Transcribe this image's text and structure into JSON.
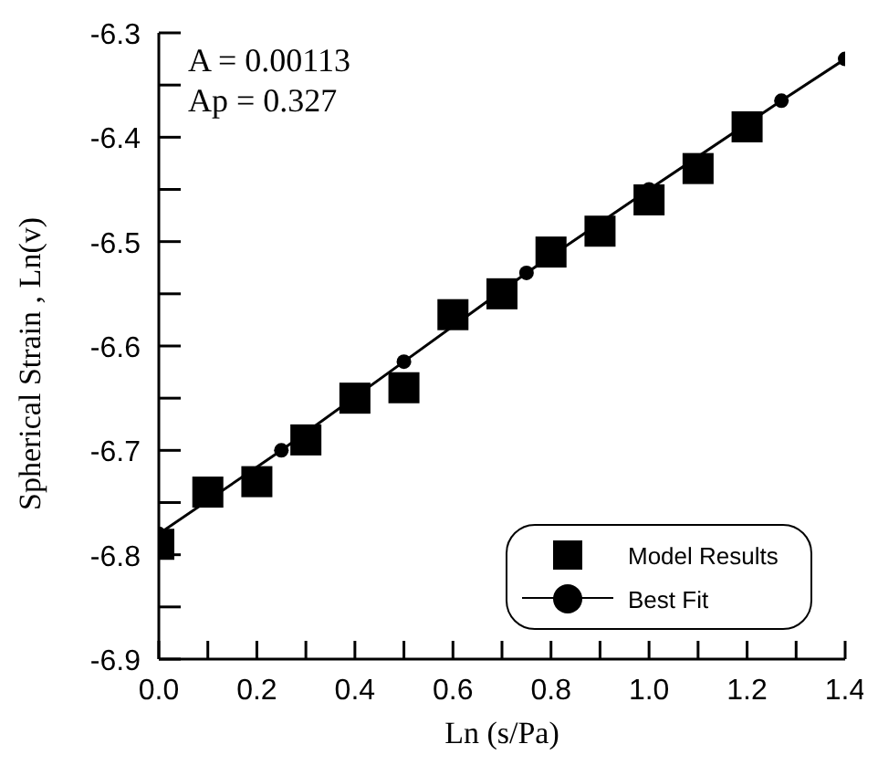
{
  "chart_data": {
    "type": "scatter",
    "xlabel": "Ln (s/Pa)",
    "ylabel": "Spherical Strain , Ln(v)",
    "xlim": [
      0,
      1.4
    ],
    "ylim": [
      -6.9,
      -6.3
    ],
    "xticks": [
      {
        "value": 0,
        "label": "0.0"
      },
      {
        "value": 0.1,
        "label": null
      },
      {
        "value": 0.2,
        "label": "0.2"
      },
      {
        "value": 0.3,
        "label": null
      },
      {
        "value": 0.4,
        "label": "0.4"
      },
      {
        "value": 0.5,
        "label": null
      },
      {
        "value": 0.6,
        "label": "0.6"
      },
      {
        "value": 0.7,
        "label": null
      },
      {
        "value": 0.8,
        "label": "0.8"
      },
      {
        "value": 0.9,
        "label": null
      },
      {
        "value": 1.0,
        "label": "1.0"
      },
      {
        "value": 1.1,
        "label": null
      },
      {
        "value": 1.2,
        "label": "1.2"
      },
      {
        "value": 1.3,
        "label": null
      },
      {
        "value": 1.4,
        "label": "1.4"
      }
    ],
    "yticks": [
      -6.9,
      {
        "value": -6.85,
        "label": null
      },
      -6.8,
      {
        "value": -6.75,
        "label": null
      },
      -6.7,
      {
        "value": -6.65,
        "label": null
      },
      -6.6,
      {
        "value": -6.55,
        "label": null
      },
      -6.5,
      {
        "value": -6.45,
        "label": null
      },
      -6.4,
      {
        "value": -6.35,
        "label": null
      },
      -6.3
    ],
    "annotations": [
      "A = 0.00113",
      "Ap = 0.327"
    ],
    "legend": "bottom right",
    "grid": false,
    "series": [
      {
        "name": "Model Results",
        "type": "scatter",
        "marker": "square",
        "color": "#000000",
        "x": [
          0,
          0.1,
          0.2,
          0.3,
          0.4,
          0.5,
          0.6,
          0.7,
          0.8,
          0.9,
          1.0,
          1.1,
          1.2
        ],
        "values": [
          -6.79,
          -6.74,
          -6.73,
          -6.69,
          -6.65,
          -6.64,
          -6.57,
          -6.55,
          -6.51,
          -6.49,
          -6.46,
          -6.43,
          -6.39
        ]
      },
      {
        "name": "Best Fit",
        "type": "line",
        "marker": "circle",
        "line_style": "solid",
        "color": "#000000",
        "x": [
          0,
          0.25,
          0.5,
          0.75,
          1.0,
          1.27,
          1.4
        ],
        "values": [
          -6.78,
          -6.7,
          -6.615,
          -6.53,
          -6.45,
          -6.365,
          -6.325
        ]
      }
    ]
  }
}
